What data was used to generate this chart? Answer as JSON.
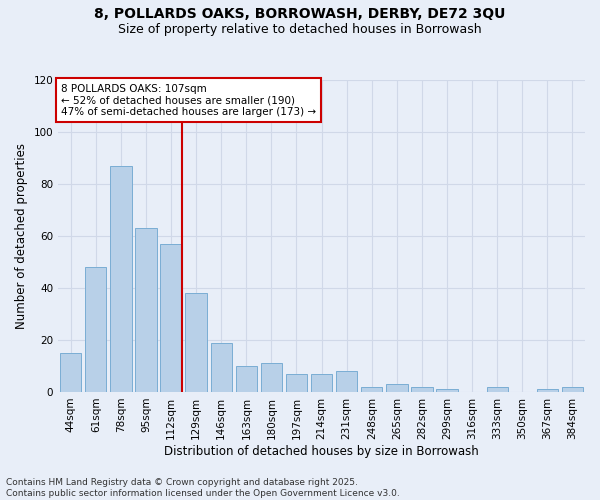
{
  "title_line1": "8, POLLARDS OAKS, BORROWASH, DERBY, DE72 3QU",
  "title_line2": "Size of property relative to detached houses in Borrowash",
  "xlabel": "Distribution of detached houses by size in Borrowash",
  "ylabel": "Number of detached properties",
  "categories": [
    "44sqm",
    "61sqm",
    "78sqm",
    "95sqm",
    "112sqm",
    "129sqm",
    "146sqm",
    "163sqm",
    "180sqm",
    "197sqm",
    "214sqm",
    "231sqm",
    "248sqm",
    "265sqm",
    "282sqm",
    "299sqm",
    "316sqm",
    "333sqm",
    "350sqm",
    "367sqm",
    "384sqm"
  ],
  "values": [
    15,
    48,
    87,
    63,
    57,
    38,
    19,
    10,
    11,
    7,
    7,
    8,
    2,
    3,
    2,
    1,
    0,
    2,
    0,
    1,
    2
  ],
  "bar_color": "#b8d0e8",
  "bar_edge_color": "#7aadd4",
  "red_line_index": 4,
  "annotation_text": "8 POLLARDS OAKS: 107sqm\n← 52% of detached houses are smaller (190)\n47% of semi-detached houses are larger (173) →",
  "annotation_box_color": "#ffffff",
  "annotation_box_edge_color": "#cc0000",
  "red_line_color": "#cc0000",
  "ylim": [
    0,
    120
  ],
  "yticks": [
    0,
    20,
    40,
    60,
    80,
    100,
    120
  ],
  "grid_color": "#d0d8e8",
  "background_color": "#e8eef8",
  "footer_line1": "Contains HM Land Registry data © Crown copyright and database right 2025.",
  "footer_line2": "Contains public sector information licensed under the Open Government Licence v3.0.",
  "title_fontsize": 10,
  "subtitle_fontsize": 9,
  "axis_label_fontsize": 8.5,
  "tick_fontsize": 7.5,
  "annotation_fontsize": 7.5,
  "footer_fontsize": 6.5
}
